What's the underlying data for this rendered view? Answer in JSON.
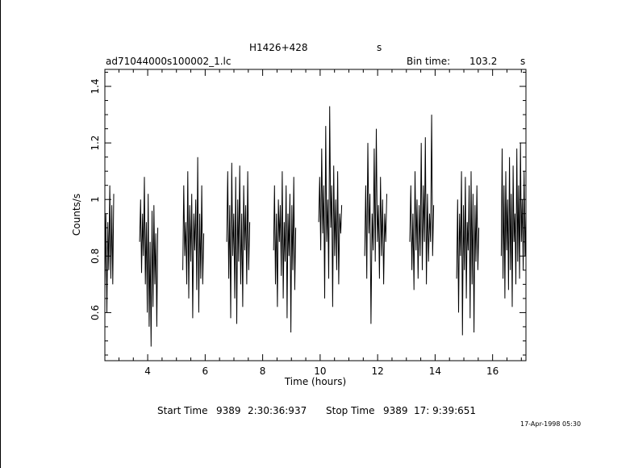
{
  "header": {
    "object": "H1426+428",
    "object_unit": "s",
    "filename": "ad71044000s100002_1.lc",
    "bin_label": "Bin time:",
    "bin_value": "103.2",
    "bin_unit": "s"
  },
  "footer": {
    "start_label": "Start Time",
    "start_day": "9389",
    "start_time": "2:30:36:937",
    "stop_label": "Stop Time",
    "stop_day": "9389",
    "stop_time": "17: 9:39:651",
    "timestamp": "17-Apr-1998 05:30"
  },
  "chart_data": {
    "type": "line",
    "title": "H1426+428",
    "xlabel": "Time (hours)",
    "ylabel": "Counts/s",
    "xlim": [
      2.51,
      17.16
    ],
    "ylim": [
      0.43,
      1.46
    ],
    "x_ticks": [
      4,
      6,
      8,
      10,
      12,
      14,
      16
    ],
    "y_ticks": [
      0.6,
      0.8,
      1.0,
      1.2,
      1.4
    ],
    "x_tick_labels": [
      "4",
      "6",
      "8",
      "10",
      "12",
      "14",
      "16"
    ],
    "y_tick_labels": [
      "0.6",
      "0.8",
      "1",
      "1.2",
      "1.4"
    ],
    "segments": [
      {
        "start": 2.51,
        "end": 2.82,
        "values": [
          0.68,
          0.95,
          0.6,
          0.92,
          0.75,
          1.05,
          0.72,
          0.98,
          0.7,
          1.02
        ]
      },
      {
        "start": 3.72,
        "end": 4.35,
        "values": [
          0.85,
          1.0,
          0.74,
          0.95,
          0.8,
          1.08,
          0.7,
          0.92,
          0.6,
          1.02,
          0.55,
          0.85,
          0.48,
          0.96,
          0.62,
          0.98,
          0.7,
          0.88,
          0.55,
          0.9
        ]
      },
      {
        "start": 5.22,
        "end": 5.95,
        "values": [
          0.75,
          1.05,
          0.8,
          0.92,
          0.7,
          1.1,
          0.65,
          0.98,
          0.78,
          1.02,
          0.58,
          0.95,
          0.82,
          1.0,
          0.68,
          1.15,
          0.6,
          0.95,
          0.72,
          1.05,
          0.7,
          0.88
        ]
      },
      {
        "start": 6.75,
        "end": 7.55,
        "values": [
          0.85,
          1.1,
          0.72,
          0.98,
          0.58,
          1.13,
          0.8,
          0.95,
          0.65,
          1.08,
          0.56,
          1.0,
          0.78,
          1.12,
          0.7,
          0.95,
          0.62,
          1.05,
          0.82,
          0.98,
          0.7,
          1.1,
          0.75,
          0.92
        ]
      },
      {
        "start": 8.38,
        "end": 9.15,
        "values": [
          0.82,
          1.05,
          0.7,
          0.95,
          0.62,
          1.0,
          0.85,
          0.98,
          0.73,
          1.1,
          0.65,
          0.92,
          0.78,
          1.05,
          0.58,
          0.95,
          0.8,
          1.02,
          0.53,
          0.98,
          0.75,
          1.08,
          0.68,
          0.9
        ]
      },
      {
        "start": 9.95,
        "end": 10.75,
        "values": [
          0.92,
          1.08,
          0.82,
          1.18,
          0.88,
          1.05,
          0.65,
          1.26,
          0.85,
          1.0,
          0.72,
          1.33,
          0.9,
          1.05,
          0.62,
          1.12,
          0.8,
          1.0,
          0.75,
          1.1,
          0.7,
          0.95,
          0.88,
          0.98
        ]
      },
      {
        "start": 11.55,
        "end": 12.32,
        "values": [
          0.8,
          1.05,
          0.72,
          1.2,
          0.88,
          1.02,
          0.56,
          0.95,
          0.82,
          1.18,
          0.78,
          1.25,
          0.85,
          0.98,
          0.72,
          1.08,
          0.8,
          1.0,
          0.7,
          0.95,
          0.85,
          1.02
        ]
      },
      {
        "start": 13.12,
        "end": 13.95,
        "values": [
          0.85,
          1.05,
          0.75,
          0.95,
          0.68,
          1.1,
          0.82,
          1.0,
          0.72,
          0.98,
          0.8,
          1.2,
          0.75,
          1.05,
          0.85,
          1.22,
          0.7,
          1.02,
          0.78,
          0.95,
          0.85,
          1.3,
          0.8,
          0.98
        ]
      },
      {
        "start": 14.75,
        "end": 15.52,
        "values": [
          0.72,
          1.0,
          0.6,
          0.95,
          0.8,
          1.1,
          0.52,
          0.98,
          0.75,
          1.08,
          0.65,
          0.92,
          0.82,
          1.05,
          0.58,
          1.1,
          0.7,
          1.02,
          0.53,
          0.98,
          0.78,
          1.05,
          0.75,
          0.9
        ]
      },
      {
        "start": 16.3,
        "end": 17.16,
        "values": [
          0.8,
          1.18,
          0.72,
          1.05,
          0.65,
          1.1,
          0.82,
          1.0,
          0.68,
          1.15,
          0.75,
          1.02,
          0.62,
          1.12,
          0.85,
          0.95,
          0.7,
          1.18,
          0.78,
          1.05,
          0.72,
          1.2,
          0.85,
          1.0,
          0.75,
          1.1,
          0.8,
          0.95
        ]
      }
    ]
  }
}
